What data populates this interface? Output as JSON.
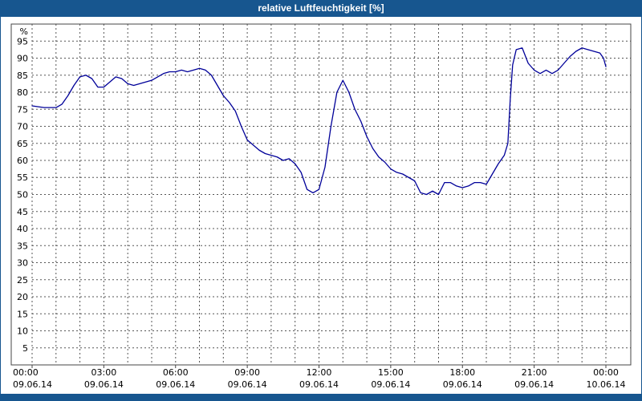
{
  "title_bar": {
    "title": "relative Luftfeuchtigkeit [%]",
    "bg_color": "#17568f",
    "text_color": "#ffffff"
  },
  "accent_color": "#17568f",
  "chart_data": {
    "type": "line",
    "title": "relative Luftfeuchtigkeit [%]",
    "xlabel": "",
    "ylabel": "%",
    "ylim": [
      0,
      100
    ],
    "xlim_hours": [
      0,
      24
    ],
    "grid": true,
    "grid_hour_step": 1,
    "y_tick_step": 5,
    "y_ticks": [
      5,
      10,
      15,
      20,
      25,
      30,
      35,
      40,
      45,
      50,
      55,
      60,
      65,
      70,
      75,
      80,
      85,
      90,
      95
    ],
    "x_ticks": [
      {
        "hour": 0,
        "time": "00:00",
        "date": "09.06.14"
      },
      {
        "hour": 3,
        "time": "03:00",
        "date": "09.06.14"
      },
      {
        "hour": 6,
        "time": "06:00",
        "date": "09.06.14"
      },
      {
        "hour": 9,
        "time": "09:00",
        "date": "09.06.14"
      },
      {
        "hour": 12,
        "time": "12:00",
        "date": "09.06.14"
      },
      {
        "hour": 15,
        "time": "15:00",
        "date": "09.06.14"
      },
      {
        "hour": 18,
        "time": "18:00",
        "date": "09.06.14"
      },
      {
        "hour": 21,
        "time": "21:00",
        "date": "09.06.14"
      },
      {
        "hour": 24,
        "time": "00:00",
        "date": "10.06.14"
      }
    ],
    "series": [
      {
        "name": "relative Luftfeuchtigkeit",
        "color": "#000099",
        "x_hours": [
          0,
          0.5,
          1,
          1.25,
          1.5,
          1.75,
          2,
          2.25,
          2.5,
          2.75,
          3,
          3.25,
          3.5,
          3.75,
          4,
          4.25,
          4.5,
          4.75,
          5,
          5.25,
          5.5,
          5.75,
          6,
          6.25,
          6.5,
          6.75,
          7,
          7.25,
          7.5,
          7.75,
          8,
          8.25,
          8.5,
          8.75,
          9,
          9.25,
          9.5,
          9.75,
          10,
          10.25,
          10.5,
          10.75,
          11,
          11.25,
          11.5,
          11.75,
          12,
          12.25,
          12.5,
          12.75,
          13,
          13.25,
          13.5,
          13.75,
          14,
          14.25,
          14.5,
          14.75,
          15,
          15.25,
          15.5,
          15.75,
          16,
          16.25,
          16.5,
          16.75,
          17,
          17.25,
          17.5,
          17.75,
          18,
          18.25,
          18.5,
          18.75,
          19,
          19.25,
          19.5,
          19.75,
          19.9,
          20,
          20.1,
          20.25,
          20.5,
          20.75,
          21,
          21.25,
          21.5,
          21.75,
          22,
          22.25,
          22.5,
          22.75,
          23,
          23.25,
          23.5,
          23.75,
          23.9,
          24
        ],
        "values": [
          76,
          75.5,
          75.5,
          76.5,
          79,
          82,
          84.5,
          85,
          84,
          81.5,
          81.5,
          83,
          84.5,
          84,
          82.5,
          82,
          82.5,
          83,
          83.5,
          84.5,
          85.5,
          86,
          86,
          86.5,
          86,
          86.5,
          87,
          86.5,
          85,
          82,
          79,
          77,
          74.5,
          70,
          66,
          64.5,
          63,
          62,
          61.5,
          61,
          60,
          60.5,
          59,
          56.5,
          51.5,
          50.5,
          51.5,
          58,
          70,
          80,
          83.5,
          80,
          75,
          71.5,
          67,
          63.5,
          61,
          59.5,
          57.5,
          56.5,
          56,
          55,
          54,
          50.5,
          50,
          51,
          50,
          53.5,
          53.5,
          52.5,
          52,
          52.5,
          53.5,
          53.5,
          53,
          56,
          59,
          61.5,
          65,
          78,
          88,
          92.5,
          93,
          88.5,
          86.5,
          85.5,
          86.5,
          85.5,
          86.5,
          88.5,
          90.5,
          92,
          93,
          92.5,
          92,
          91.5,
          90,
          87.5
        ]
      }
    ]
  }
}
